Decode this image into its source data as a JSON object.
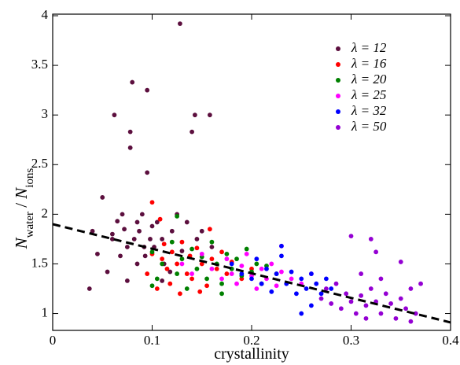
{
  "chart_data": {
    "type": "scatter",
    "xlabel": "crystallinity",
    "ylabel": [
      {
        "text": "N",
        "style": "italic"
      },
      {
        "text": "water",
        "style": "sub"
      },
      {
        "text": " / ",
        "style": "normal"
      },
      {
        "text": "N",
        "style": "italic"
      },
      {
        "text": "ions",
        "style": "sub"
      }
    ],
    "xlim": [
      0,
      0.4
    ],
    "ylim": [
      0.83,
      4
    ],
    "xticks": [
      0,
      0.1,
      0.2,
      0.3,
      0.4
    ],
    "yticks": [
      1,
      1.5,
      2,
      2.5,
      3,
      3.5,
      4
    ],
    "legend": "upper right",
    "trend": {
      "x": [
        0,
        0.4
      ],
      "values": [
        1.9,
        0.91
      ],
      "color": "#000000",
      "dashed": true
    },
    "series": [
      {
        "name": "λ = 12",
        "color": "#5c0f3e",
        "x": [
          0.037,
          0.04,
          0.045,
          0.05,
          0.055,
          0.06,
          0.06,
          0.062,
          0.065,
          0.07,
          0.072,
          0.075,
          0.078,
          0.078,
          0.08,
          0.082,
          0.085,
          0.087,
          0.09,
          0.093,
          0.095,
          0.095,
          0.098,
          0.1,
          0.102,
          0.105,
          0.11,
          0.112,
          0.118,
          0.12,
          0.125,
          0.128,
          0.13,
          0.135,
          0.14,
          0.143,
          0.145,
          0.15,
          0.158,
          0.16,
          0.092,
          0.085,
          0.068,
          0.075,
          0.11
        ],
        "values": [
          1.25,
          1.83,
          1.6,
          2.17,
          1.42,
          1.8,
          1.75,
          3.0,
          1.93,
          2.0,
          1.85,
          1.67,
          2.83,
          2.67,
          3.33,
          1.75,
          1.5,
          1.83,
          2.0,
          1.58,
          2.42,
          3.25,
          1.75,
          1.88,
          1.67,
          1.92,
          1.75,
          1.5,
          1.42,
          1.83,
          2.0,
          3.92,
          1.63,
          1.92,
          2.83,
          3.0,
          1.75,
          1.83,
          3.0,
          1.67,
          1.67,
          1.92,
          1.58,
          1.33,
          1.33
        ]
      },
      {
        "name": "λ = 16",
        "color": "#ff0000",
        "x": [
          0.095,
          0.1,
          0.1,
          0.105,
          0.11,
          0.112,
          0.115,
          0.118,
          0.12,
          0.125,
          0.128,
          0.13,
          0.135,
          0.138,
          0.14,
          0.145,
          0.15,
          0.155,
          0.158,
          0.16,
          0.165,
          0.17,
          0.175,
          0.18,
          0.19,
          0.2,
          0.108,
          0.148
        ],
        "values": [
          1.4,
          2.12,
          1.6,
          1.25,
          1.55,
          1.7,
          1.45,
          1.3,
          1.62,
          1.5,
          1.2,
          1.72,
          1.4,
          1.58,
          1.35,
          1.66,
          1.5,
          1.28,
          1.85,
          1.55,
          1.45,
          1.62,
          1.4,
          1.52,
          1.35,
          1.45,
          1.95,
          1.22
        ]
      },
      {
        "name": "λ = 20",
        "color": "#008000",
        "x": [
          0.1,
          0.105,
          0.11,
          0.12,
          0.125,
          0.13,
          0.135,
          0.14,
          0.145,
          0.15,
          0.155,
          0.16,
          0.165,
          0.17,
          0.175,
          0.18,
          0.185,
          0.19,
          0.195,
          0.2,
          0.205,
          0.21,
          0.215,
          0.225,
          0.125,
          0.1,
          0.17
        ],
        "values": [
          1.62,
          1.35,
          1.5,
          1.72,
          1.4,
          1.55,
          1.25,
          1.65,
          1.45,
          1.57,
          1.35,
          1.72,
          1.5,
          1.3,
          1.6,
          1.45,
          1.55,
          1.38,
          1.65,
          1.42,
          1.5,
          1.3,
          1.48,
          1.4,
          1.98,
          1.28,
          1.2
        ]
      },
      {
        "name": "λ = 25",
        "color": "#ff00ff",
        "x": [
          0.13,
          0.14,
          0.15,
          0.16,
          0.17,
          0.175,
          0.18,
          0.185,
          0.19,
          0.195,
          0.2,
          0.205,
          0.21,
          0.215,
          0.22,
          0.225,
          0.23,
          0.24,
          0.25,
          0.26,
          0.23
        ],
        "values": [
          1.5,
          1.4,
          1.6,
          1.45,
          1.35,
          1.55,
          1.4,
          1.3,
          1.48,
          1.6,
          1.38,
          1.25,
          1.45,
          1.35,
          1.5,
          1.28,
          1.42,
          1.35,
          1.3,
          1.4,
          1.68
        ]
      },
      {
        "name": "λ = 32",
        "color": "#0000ff",
        "x": [
          0.18,
          0.19,
          0.2,
          0.205,
          0.21,
          0.215,
          0.22,
          0.225,
          0.23,
          0.235,
          0.24,
          0.245,
          0.25,
          0.255,
          0.26,
          0.265,
          0.27,
          0.275,
          0.28,
          0.23,
          0.26,
          0.25
        ],
        "values": [
          1.5,
          1.4,
          1.35,
          1.55,
          1.3,
          1.45,
          1.22,
          1.4,
          1.58,
          1.3,
          1.42,
          1.2,
          1.35,
          1.25,
          1.4,
          1.3,
          1.2,
          1.35,
          1.25,
          1.68,
          1.08,
          1.0
        ]
      },
      {
        "name": "λ = 50",
        "color": "#9400d3",
        "x": [
          0.27,
          0.275,
          0.28,
          0.285,
          0.29,
          0.295,
          0.3,
          0.3,
          0.305,
          0.31,
          0.31,
          0.315,
          0.32,
          0.32,
          0.325,
          0.33,
          0.33,
          0.335,
          0.34,
          0.345,
          0.35,
          0.35,
          0.355,
          0.36,
          0.36,
          0.365,
          0.37,
          0.315,
          0.325
        ],
        "values": [
          1.15,
          1.25,
          1.1,
          1.3,
          1.05,
          1.2,
          1.12,
          1.78,
          1.0,
          1.18,
          1.4,
          1.08,
          1.25,
          1.75,
          1.12,
          1.0,
          1.35,
          1.2,
          1.1,
          0.95,
          1.15,
          1.52,
          1.05,
          0.92,
          1.25,
          1.0,
          1.3,
          0.95,
          1.62
        ]
      }
    ]
  }
}
